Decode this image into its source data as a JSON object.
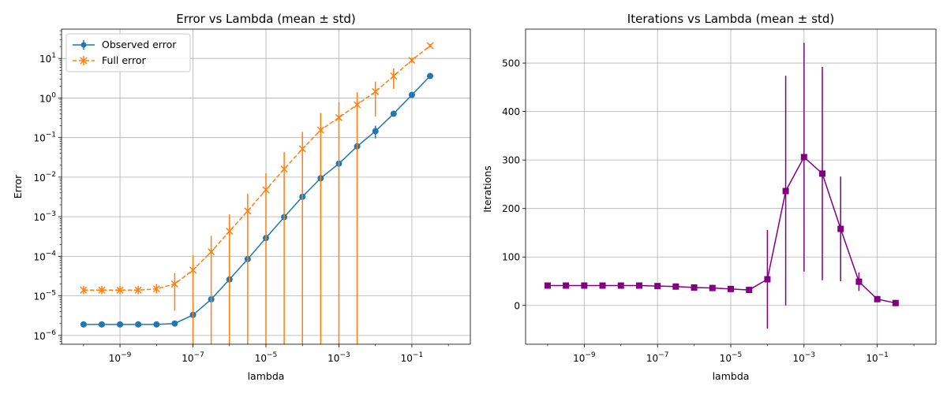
{
  "chart_data": [
    {
      "type": "line",
      "title": "Error vs Lambda (mean ± std)",
      "xlabel": "lambda",
      "ylabel": "Error",
      "xscale": "log",
      "yscale": "log",
      "grid": true,
      "legend": "top-left",
      "xlim": [
        2.5e-11,
        4.0
      ],
      "ylim": [
        6e-07,
        55
      ],
      "x_tick_labels": [
        "10^-9",
        "10^-7",
        "10^-5",
        "10^-3",
        "10^-1"
      ],
      "y_tick_labels": [
        "10^-6",
        "10^-5",
        "10^-4",
        "10^-3",
        "10^-2",
        "10^-1",
        "10^0",
        "10^1"
      ],
      "x": [
        1e-10,
        3.16e-10,
        1e-09,
        3.16e-09,
        1e-08,
        3.16e-08,
        1e-07,
        3.16e-07,
        1e-06,
        3.16e-06,
        1e-05,
        3.16e-05,
        0.0001,
        0.000316,
        0.001,
        0.00316,
        0.01,
        0.0316,
        0.1,
        0.316,
        1
      ],
      "series": [
        {
          "name": "Observed error",
          "color": "#1f77b4",
          "marker": "circle",
          "linestyle": "solid",
          "values": [
            1.9e-06,
            1.9e-06,
            1.9e-06,
            1.9e-06,
            1.9e-06,
            2e-06,
            3.3e-06,
            8.2e-06,
            2.6e-05,
            8.5e-05,
            0.00029,
            0.00098,
            0.0032,
            0.0094,
            0.022,
            0.06,
            0.145,
            0.4,
            1.2,
            3.6,
            null
          ],
          "err_low": [
            1.6e-06,
            1.6e-06,
            1.6e-06,
            1.6e-06,
            1.6e-06,
            1.7e-06,
            3e-06,
            7.2e-06,
            2.2e-05,
            7.5e-05,
            0.00026,
            0.00088,
            0.0029,
            0.0086,
            0.02,
            0.055,
            0.095,
            0.36,
            1.1,
            3.3,
            null
          ],
          "err_high": [
            2.2e-06,
            2.2e-06,
            2.2e-06,
            2.2e-06,
            2.2e-06,
            2.3e-06,
            3.6e-06,
            9.2e-06,
            3e-05,
            9.5e-05,
            0.00032,
            0.00108,
            0.0035,
            0.0102,
            0.024,
            0.065,
            0.2,
            0.44,
            1.3,
            3.9,
            null
          ]
        },
        {
          "name": "Full error",
          "color": "#ff7f0e",
          "marker": "x",
          "linestyle": "dashed",
          "values": [
            1.4e-05,
            1.4e-05,
            1.4e-05,
            1.4e-05,
            1.5e-05,
            2e-05,
            4.5e-05,
            0.00013,
            0.00043,
            0.0014,
            0.0048,
            0.016,
            0.052,
            0.155,
            0.32,
            0.68,
            1.45,
            3.6,
            9.0,
            21,
            null
          ],
          "err_low": [
            1.1e-05,
            1.1e-05,
            1.1e-05,
            1.1e-05,
            1.15e-05,
            4.2e-06,
            6e-07,
            6e-07,
            6e-07,
            6e-07,
            6e-07,
            6e-07,
            6e-07,
            6e-07,
            6e-07,
            6e-07,
            0.34,
            1.7,
            7.6,
            19,
            null
          ],
          "err_high": [
            1.8e-05,
            1.8e-05,
            1.8e-05,
            1.8e-05,
            2e-05,
            3.8e-05,
            0.000105,
            0.00033,
            0.00115,
            0.0038,
            0.0125,
            0.043,
            0.14,
            0.42,
            0.78,
            1.4,
            2.6,
            5.6,
            10.5,
            23,
            null
          ]
        }
      ]
    },
    {
      "type": "line",
      "title": "Iterations vs Lambda (mean ± std)",
      "xlabel": "lambda",
      "ylabel": "Iterations",
      "xscale": "log",
      "yscale": "linear",
      "grid": true,
      "xlim": [
        2.5e-11,
        4.0
      ],
      "ylim": [
        -80,
        570
      ],
      "x_tick_labels": [
        "10^-9",
        "10^-7",
        "10^-5",
        "10^-3",
        "10^-1"
      ],
      "y_ticks": [
        0,
        100,
        200,
        300,
        400,
        500
      ],
      "x": [
        1e-10,
        3.16e-10,
        1e-09,
        3.16e-09,
        1e-08,
        3.16e-08,
        1e-07,
        3.16e-07,
        1e-06,
        3.16e-06,
        1e-05,
        3.16e-05,
        0.0001,
        0.000316,
        0.001,
        0.00316,
        0.01,
        0.0316,
        0.1,
        0.316,
        1
      ],
      "series": [
        {
          "name": "",
          "color": "#800080",
          "marker": "square",
          "linestyle": "solid",
          "values": [
            41,
            41,
            41,
            41,
            41,
            41,
            40,
            39,
            37,
            36,
            34,
            32,
            54,
            236,
            306,
            272,
            158,
            49,
            13,
            5,
            null
          ],
          "err_low": [
            41,
            41,
            41,
            41,
            41,
            41,
            40,
            39,
            37,
            36,
            34,
            32,
            -48,
            0,
            70,
            52,
            50,
            30,
            13,
            5,
            null
          ],
          "err_high": [
            41,
            41,
            41,
            41,
            41,
            41,
            40,
            39,
            37,
            36,
            34,
            32,
            156,
            474,
            542,
            492,
            266,
            68,
            13,
            5,
            null
          ]
        }
      ]
    }
  ]
}
